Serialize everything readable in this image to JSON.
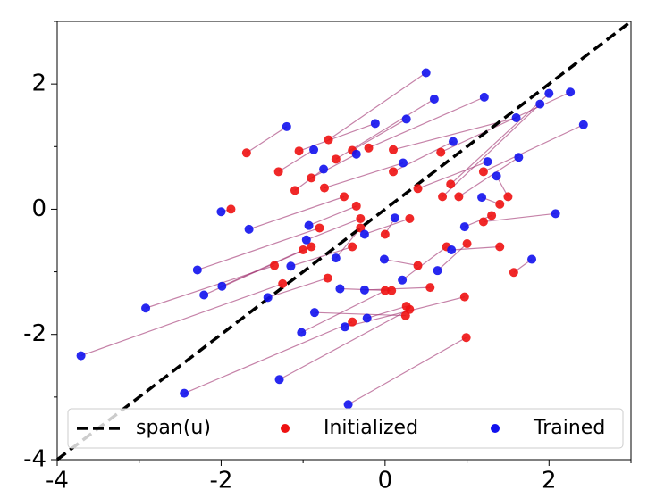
{
  "chart_data": {
    "type": "scatter",
    "xlim": [
      -4,
      3
    ],
    "ylim": [
      -4,
      3
    ],
    "xticks": [
      -4,
      -2,
      0,
      2
    ],
    "yticks": [
      -4,
      -2,
      0,
      2
    ],
    "xminorticks": [
      -3,
      -1,
      1,
      3
    ],
    "yminorticks": [
      -3,
      -1,
      1,
      3
    ],
    "connect_pairs": true,
    "connector_color": "#a0306f",
    "legend": "bottom",
    "series": [
      {
        "name": "span(u)",
        "color": "#000000",
        "line": "dashed",
        "x": [
          -4,
          3
        ],
        "values": [
          -4,
          3
        ]
      },
      {
        "name": "Initialized",
        "color": "#ee1111",
        "x": [
          -0.69,
          0.8,
          0.68,
          1.2,
          0.1,
          0.7,
          -0.2,
          -0.6,
          -0.4,
          -1.05,
          -1.69,
          -1.3,
          -0.74,
          -0.9,
          -1.1,
          0.4,
          0.9,
          0.1,
          -1.88,
          -0.5,
          -0.8,
          -0.9,
          -1.0,
          -1.35,
          -1.25,
          -0.4,
          0.3,
          0.99,
          0.0,
          0.25,
          0.97,
          0.26,
          0.08,
          0.4,
          0.75,
          1.0,
          1.4,
          1.3,
          1.4,
          1.5,
          1.2,
          1.57,
          0.0,
          0.3,
          -0.35,
          -0.3,
          -0.4,
          -0.3,
          -0.7,
          0.55
        ],
        "values": [
          1.11,
          0.4,
          0.91,
          0.6,
          0.95,
          0.2,
          0.98,
          0.8,
          0.94,
          0.93,
          0.9,
          0.6,
          0.34,
          0.5,
          0.3,
          0.33,
          0.2,
          0.6,
          0.0,
          0.2,
          -0.3,
          -0.6,
          -0.65,
          -0.9,
          -1.19,
          -1.8,
          -1.6,
          -2.05,
          -1.3,
          -1.7,
          -1.4,
          -1.55,
          -1.3,
          -0.9,
          -0.6,
          -0.55,
          -0.6,
          -0.1,
          0.08,
          0.2,
          -0.2,
          -1.01,
          -0.4,
          -0.15,
          0.05,
          -0.15,
          -0.6,
          -0.3,
          -1.1,
          -1.25
        ]
      },
      {
        "name": "Trained",
        "color": "#1111ee",
        "x": [
          0.5,
          2.0,
          2.26,
          2.42,
          1.6,
          1.89,
          1.21,
          0.6,
          0.26,
          -0.12,
          -1.2,
          -0.87,
          0.22,
          -0.35,
          -0.75,
          1.25,
          1.63,
          0.83,
          -2.0,
          -1.66,
          -2.29,
          -2.21,
          -1.99,
          -2.92,
          -3.71,
          -2.45,
          -1.29,
          -0.45,
          -1.02,
          -0.86,
          -0.49,
          -0.22,
          -0.55,
          -0.01,
          0.21,
          0.64,
          0.81,
          0.97,
          1.18,
          1.36,
          2.08,
          1.79,
          0.12,
          -0.25,
          -0.93,
          -0.96,
          -1.15,
          -0.6,
          -1.43,
          -0.25
        ],
        "values": [
          2.18,
          1.85,
          1.87,
          1.35,
          1.46,
          1.68,
          1.79,
          1.76,
          1.44,
          1.37,
          1.32,
          0.95,
          0.74,
          0.88,
          0.64,
          0.76,
          0.83,
          1.08,
          -0.04,
          -0.32,
          -0.97,
          -1.37,
          -1.23,
          -1.58,
          -2.34,
          -2.94,
          -2.72,
          -3.12,
          -1.97,
          -1.65,
          -1.88,
          -1.74,
          -1.27,
          -0.8,
          -1.13,
          -0.98,
          -0.65,
          -0.28,
          0.19,
          0.53,
          -0.07,
          -0.8,
          -0.14,
          -0.4,
          -0.26,
          -0.49,
          -0.91,
          -0.78,
          -1.41,
          -1.29
        ]
      }
    ]
  }
}
